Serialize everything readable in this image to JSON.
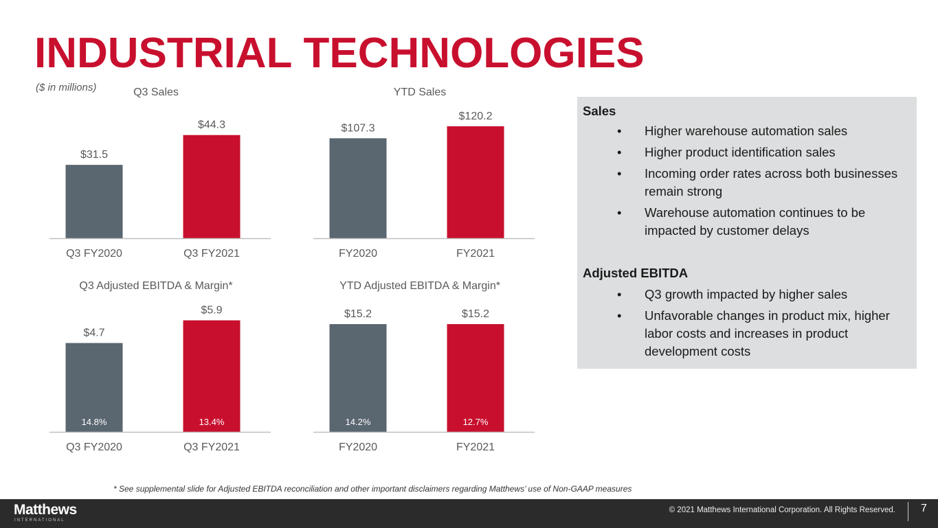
{
  "title": "INDUSTRIAL TECHNOLOGIES",
  "units": "($ in millions)",
  "colors": {
    "prior": "#5a6670",
    "current": "#c8102e",
    "panel": "#dcdedf"
  },
  "chart_data": [
    {
      "type": "bar",
      "title": "Q3 Sales",
      "categories": [
        "Q3 FY2020",
        "Q3 FY2021"
      ],
      "values": [
        31.5,
        44.3
      ],
      "labels": [
        "$31.5",
        "$44.3"
      ],
      "ylim": [
        0,
        56
      ]
    },
    {
      "type": "bar",
      "title": "YTD Sales",
      "categories": [
        "FY2020",
        "FY2021"
      ],
      "values": [
        107.3,
        120.2
      ],
      "labels": [
        "$107.3",
        "$120.2"
      ],
      "ylim": [
        0,
        140
      ]
    },
    {
      "type": "bar",
      "title": "Q3 Adjusted EBITDA & Margin*",
      "categories": [
        "Q3 FY2020",
        "Q3 FY2021"
      ],
      "values": [
        4.7,
        5.9
      ],
      "labels": [
        "$4.7",
        "$5.9"
      ],
      "margins": [
        "14.8%",
        "13.4%"
      ],
      "ylim": [
        0,
        6.9
      ]
    },
    {
      "type": "bar",
      "title": "YTD Adjusted EBITDA & Margin*",
      "categories": [
        "FY2020",
        "FY2021"
      ],
      "values": [
        15.2,
        15.2
      ],
      "labels": [
        "$15.2",
        "$15.2"
      ],
      "margins": [
        "14.2%",
        "12.7%"
      ],
      "ylim": [
        0,
        18.4
      ]
    }
  ],
  "panel": {
    "sales_heading": "Sales",
    "sales_bullets": [
      "Higher warehouse automation sales",
      "Higher product identification sales",
      "Incoming order rates across both businesses remain strong",
      "Warehouse automation continues to be impacted by customer delays"
    ],
    "ebitda_heading": "Adjusted EBITDA",
    "ebitda_bullets": [
      "Q3 growth impacted by higher sales",
      "Unfavorable changes in product mix, higher labor costs and increases in product development costs"
    ],
    "bullet": "•"
  },
  "footnote": "* See supplemental slide for Adjusted EBITDA reconciliation and other important disclaimers regarding Matthews’ use of Non-GAAP measures",
  "footer": {
    "logo": "Matthews",
    "logo_sub": "INTERNATIONAL",
    "copyright": "© 2021 Matthews International Corporation. All Rights Reserved.",
    "page": "7"
  }
}
